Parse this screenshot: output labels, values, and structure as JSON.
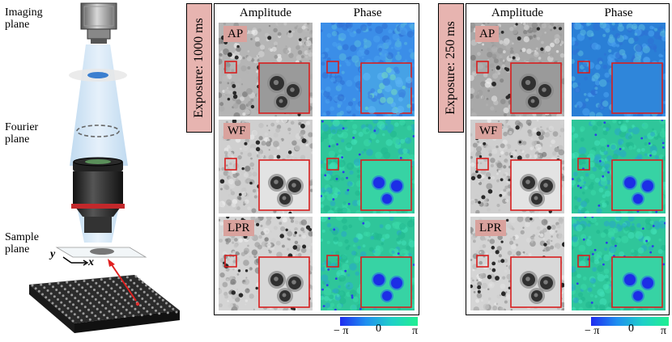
{
  "setup": {
    "imaging_plane": "Imaging\nplane",
    "fourier_plane": "Fourier\nplane",
    "sample_plane": "Sample\nplane",
    "axis_x": "x",
    "axis_y": "y"
  },
  "panels": [
    {
      "exposure": "Exposure: 1000 ms",
      "col_amplitude": "Amplitude",
      "col_phase": "Phase",
      "rows": [
        "AP",
        "WF",
        "LPR"
      ],
      "colorbar": {
        "min": "− π",
        "mid": "0",
        "max": "π"
      }
    },
    {
      "exposure": "Exposure: 250 ms",
      "col_amplitude": "Amplitude",
      "col_phase": "Phase",
      "rows": [
        "AP",
        "WF",
        "LPR"
      ],
      "colorbar": {
        "min": "− π",
        "mid": "0",
        "max": "π"
      }
    }
  ],
  "colors": {
    "label_bg": "#d9a29d",
    "exposure_bg": "#e7b4b0",
    "inset_frame": "#d81e1e",
    "phase_low": "#1f2cf0",
    "phase_high": "#20f090"
  }
}
